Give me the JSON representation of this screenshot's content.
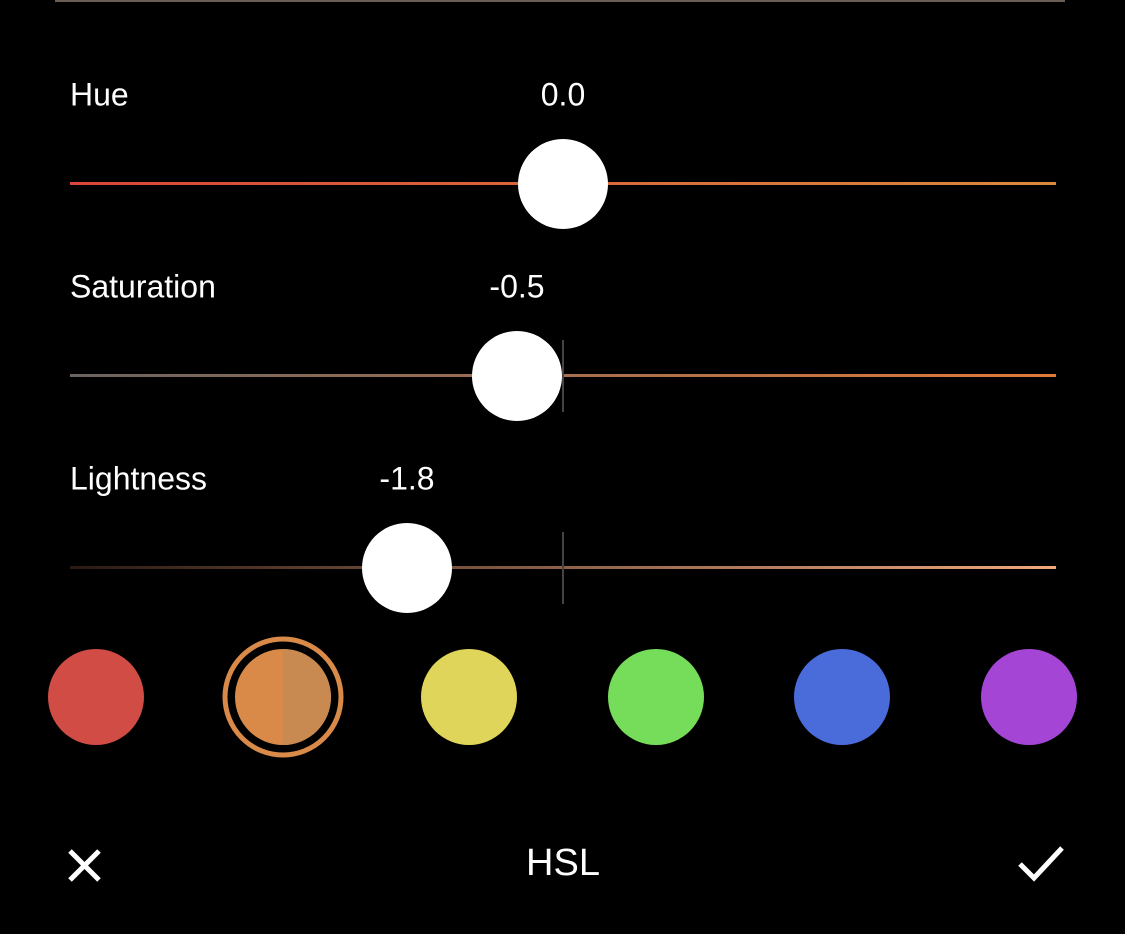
{
  "sliders": [
    {
      "label": "Hue",
      "value": "0.0"
    },
    {
      "label": "Saturation",
      "value": "-0.5"
    },
    {
      "label": "Lightness",
      "value": "-1.8"
    }
  ],
  "footer": {
    "title": "HSL"
  }
}
